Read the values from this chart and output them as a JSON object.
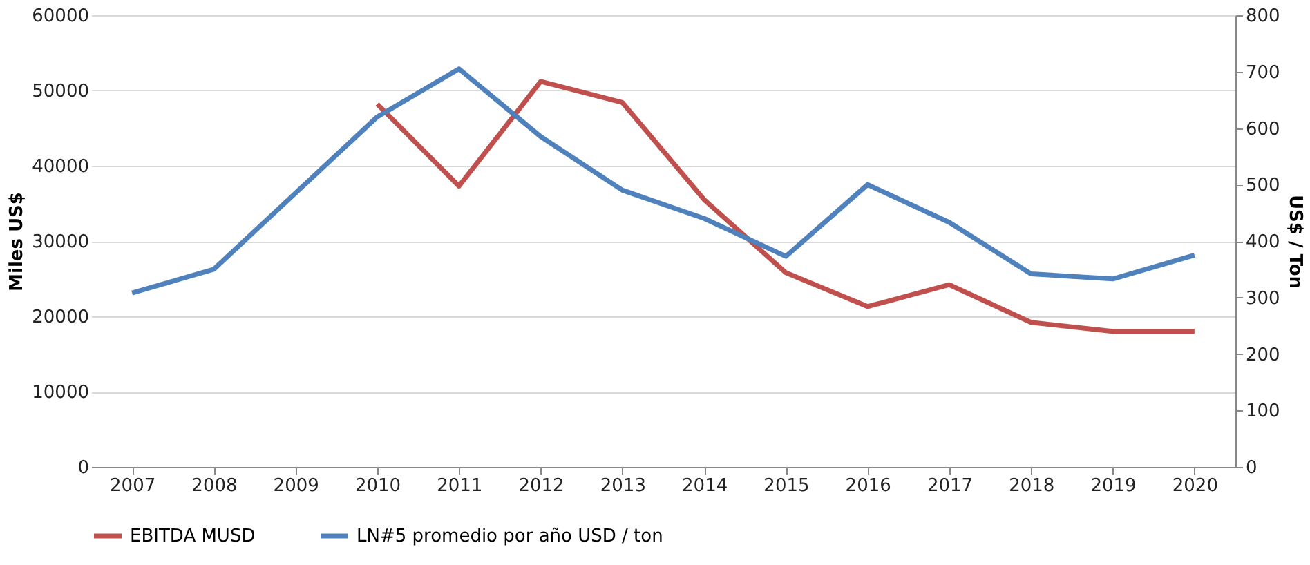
{
  "chart_data": {
    "type": "line",
    "ylabel": "Miles US$",
    "y2label": "US$ / Ton",
    "categories": [
      "2007",
      "2008",
      "2009",
      "2010",
      "2011",
      "2012",
      "2013",
      "2014",
      "2015",
      "2016",
      "2017",
      "2018",
      "2019",
      "2020"
    ],
    "series": [
      {
        "name": "EBITDA MUSD",
        "color": "#c0504d",
        "values": [
          null,
          null,
          null,
          48200,
          37300,
          51200,
          48400,
          35500,
          25800,
          21300,
          24200,
          19200,
          18000,
          18000
        ]
      },
      {
        "name": "LN#5 promedio por año USD / ton",
        "color": "#4f81bd",
        "axis": "y2",
        "values": [
          308,
          350,
          485,
          620,
          705,
          585,
          490,
          440,
          373,
          500,
          433,
          342,
          333,
          375
        ]
      }
    ],
    "ylim": [
      0,
      60000
    ],
    "yticks": [
      0,
      10000,
      20000,
      30000,
      40000,
      50000,
      60000
    ],
    "y2lim": [
      0,
      800
    ],
    "y2ticks": [
      0,
      100,
      200,
      300,
      400,
      500,
      600,
      700,
      800
    ],
    "grid": "y",
    "legend": "bottom"
  }
}
